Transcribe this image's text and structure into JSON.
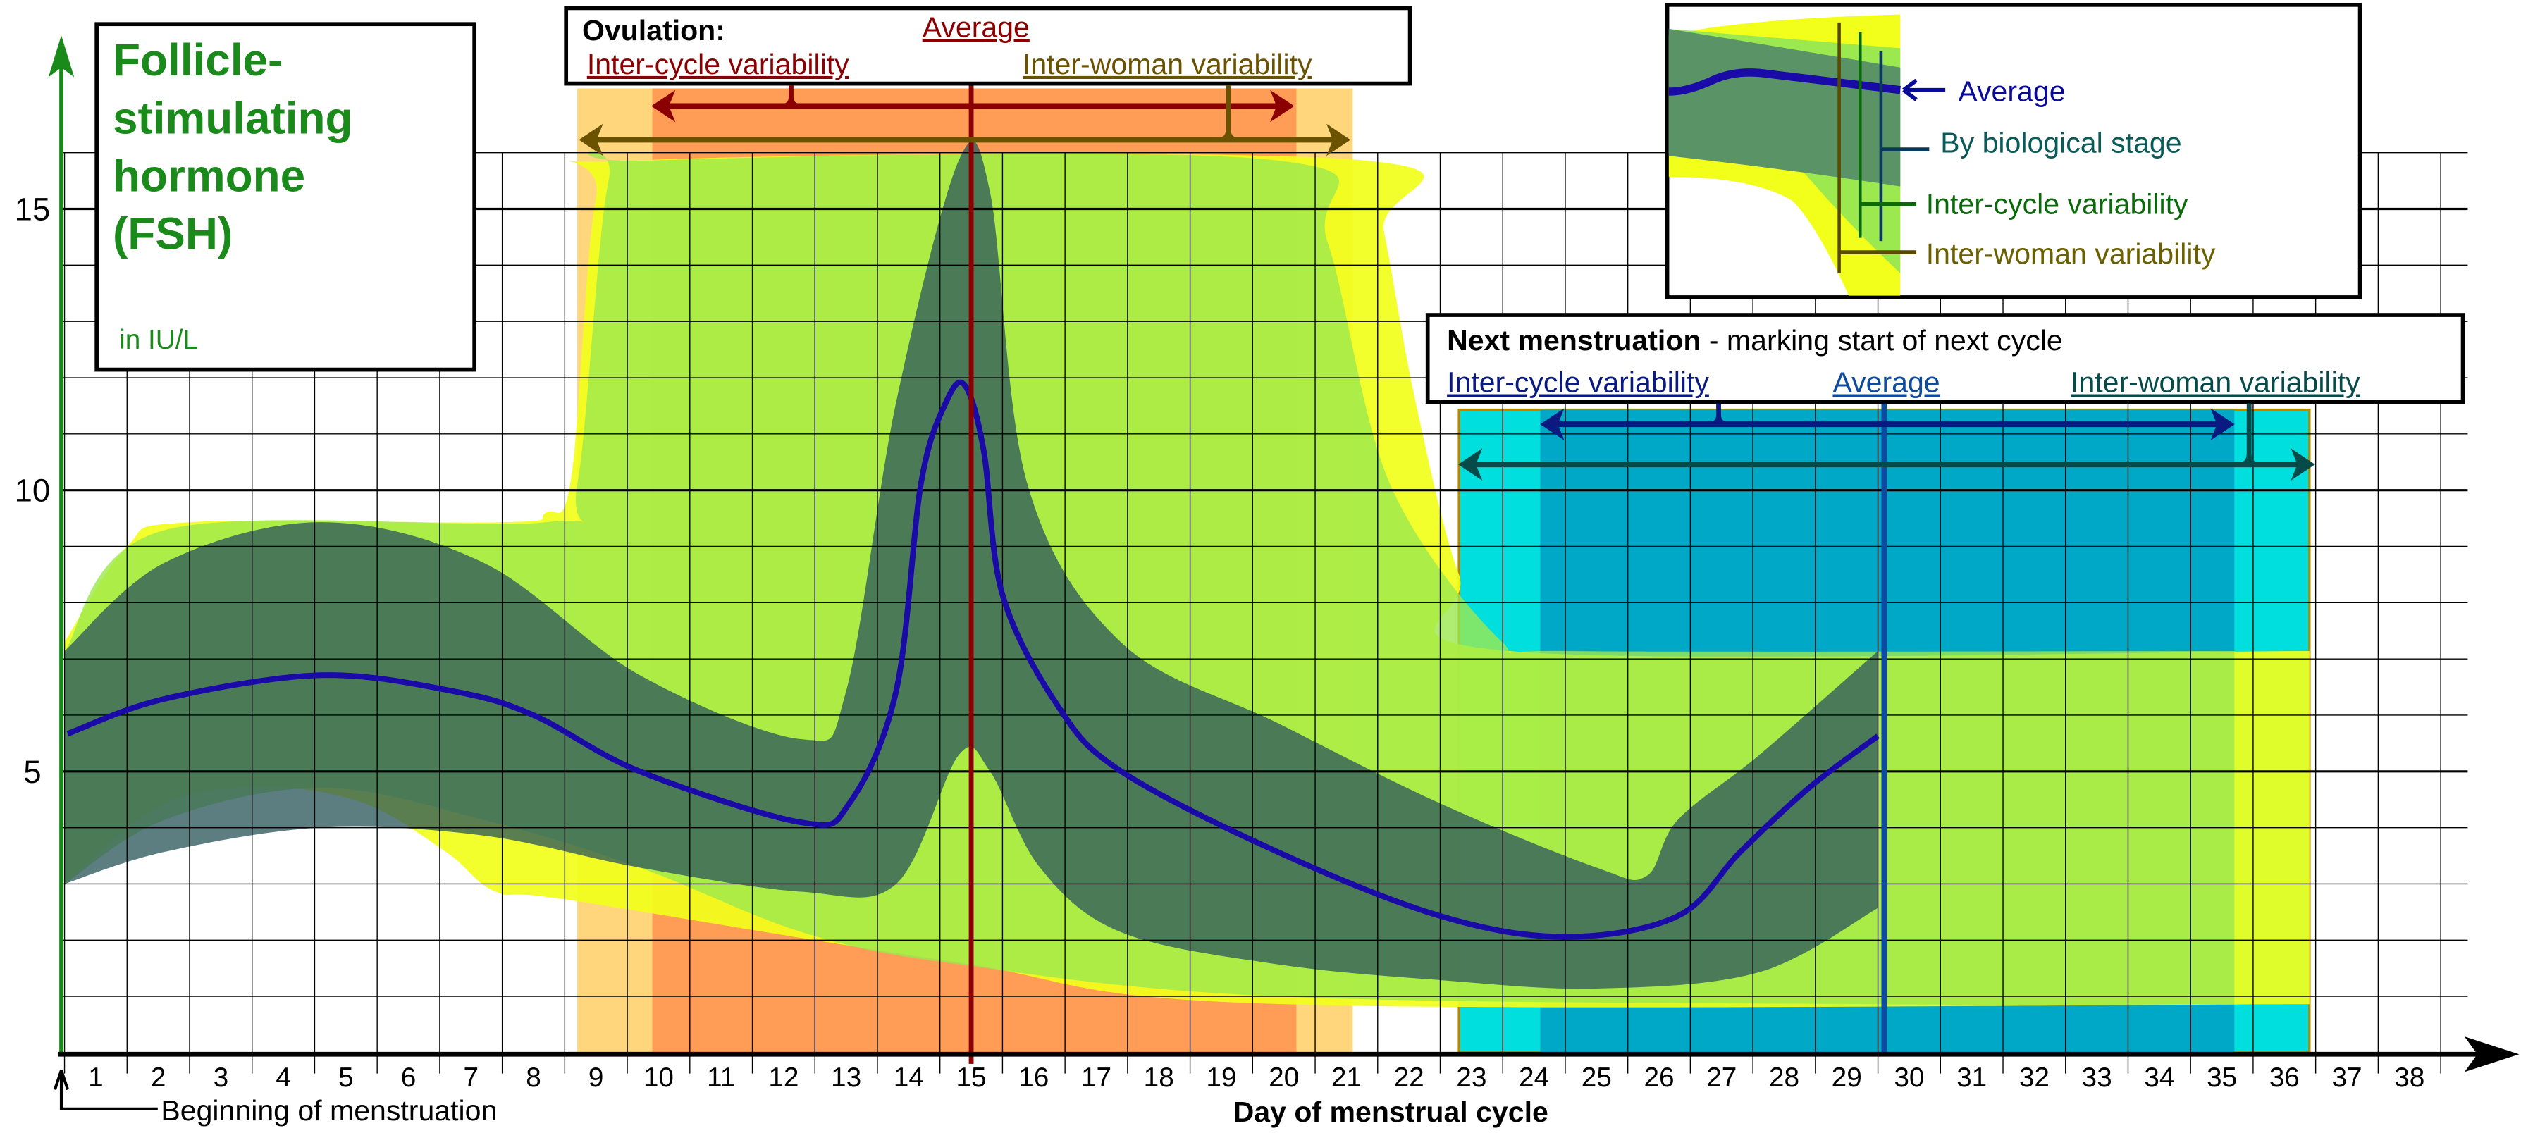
{
  "title_box": {
    "lines": [
      "Follicle-",
      "stimulating",
      "hormone",
      "(FSH)"
    ],
    "unit": "in IU/L",
    "color": "#1a8a1a"
  },
  "ovulation": {
    "heading": "Ovulation:",
    "average_label": "Average",
    "inter_cycle_label": "Inter-cycle variability",
    "inter_woman_label": "Inter-woman variability",
    "average_day": 15,
    "inter_cycle_range": [
      9.9,
      20.2
    ],
    "inter_woman_range": [
      8.7,
      21.1
    ],
    "colors": {
      "average": "#8b0000",
      "inter_cycle": "#ff8a4a",
      "inter_woman": "#ffc850",
      "inter_woman_text": "#6b5200"
    }
  },
  "next_menstruation": {
    "heading": "Next menstruation",
    "subheading": " - marking start of next cycle",
    "inter_cycle_label": "Inter-cycle variability",
    "average_label": "Average",
    "inter_woman_label": "Inter-woman variability",
    "average_day": 29.6,
    "inter_cycle_range": [
      24.1,
      35.2
    ],
    "inter_woman_range": [
      22.8,
      36.4
    ],
    "colors": {
      "average": "#0d4ba0",
      "inter_cycle": "#00a8c8",
      "inter_woman": "#00dede",
      "inter_cycle_text": "#0a1a80",
      "inter_woman_text": "#064a4a"
    }
  },
  "legend": {
    "average": "Average",
    "by_biological_stage": "By biological stage",
    "inter_cycle": "Inter-cycle variability",
    "inter_woman": "Inter-woman variability",
    "colors": {
      "average": "#0a0a9a",
      "by_biological_stage": "#0a5a5a",
      "inter_cycle": "#0a6a0a",
      "inter_woman": "#6b6000"
    }
  },
  "annotations": {
    "beginning": "Beginning of menstruation"
  },
  "chart_data": {
    "type": "area",
    "xlabel": "Day of menstrual cycle",
    "ylabel": "",
    "xlim": [
      0.5,
      38.5
    ],
    "ylim": [
      0,
      16
    ],
    "x_ticks": [
      "1",
      "2",
      "3",
      "4",
      "5",
      "6",
      "7",
      "8",
      "9",
      "10",
      "11",
      "12",
      "13",
      "14",
      "15",
      "16",
      "17",
      "18",
      "19",
      "20",
      "21",
      "22",
      "23",
      "24",
      "25",
      "26",
      "27",
      "28",
      "29",
      "30",
      "31",
      "32",
      "33",
      "34",
      "35",
      "36",
      "37",
      "38"
    ],
    "y_ticks": [
      "5",
      "10",
      "15"
    ],
    "y_tick_values": [
      5,
      10,
      15
    ],
    "grid": true,
    "series": [
      {
        "name": "Inter-woman variability",
        "kind": "band",
        "color": "#f2ff1a",
        "upper": [
          [
            0.5,
            7.3
          ],
          [
            1.5,
            9.0
          ],
          [
            2.5,
            9.43
          ],
          [
            7.5,
            9.43
          ],
          [
            8.2,
            9.6
          ],
          [
            8.6,
            10.2
          ],
          [
            9.0,
            15.2
          ],
          [
            9.6,
            15.86
          ],
          [
            21.3,
            15.86
          ],
          [
            21.6,
            14.6
          ],
          [
            22.1,
            11.6
          ],
          [
            22.8,
            8.5
          ],
          [
            23.6,
            7.14
          ],
          [
            36.4,
            7.14
          ]
        ],
        "lower": [
          [
            0.5,
            3.0
          ],
          [
            2.1,
            4.43
          ],
          [
            3.8,
            4.71
          ],
          [
            5.3,
            4.43
          ],
          [
            6.6,
            3.57
          ],
          [
            7.4,
            2.86
          ],
          [
            8.6,
            2.71
          ],
          [
            14.8,
            1.6
          ],
          [
            20.0,
            0.86
          ],
          [
            36.4,
            0.86
          ]
        ]
      },
      {
        "name": "Inter-cycle variability",
        "kind": "band",
        "color": "#9be84f",
        "upper": [
          [
            0.5,
            7.14
          ],
          [
            2.1,
            9.29
          ],
          [
            8.2,
            9.43
          ],
          [
            8.7,
            10.1
          ],
          [
            9.2,
            15.5
          ],
          [
            9.8,
            15.86
          ],
          [
            19.9,
            15.86
          ],
          [
            20.7,
            14.4
          ],
          [
            21.7,
            10.1
          ],
          [
            23.5,
            7.29
          ],
          [
            24.5,
            7.14
          ],
          [
            35.2,
            7.14
          ]
        ],
        "lower": [
          [
            0.5,
            3.0
          ],
          [
            2.1,
            4.14
          ],
          [
            4.6,
            4.71
          ],
          [
            7.2,
            4.14
          ],
          [
            9.7,
            3.29
          ],
          [
            12.3,
            2.14
          ],
          [
            14.8,
            1.57
          ],
          [
            19.9,
            1.0
          ],
          [
            29.4,
            0.86
          ],
          [
            35.2,
            0.86
          ]
        ]
      },
      {
        "name": "By biological stage",
        "kind": "band",
        "color": "#2f5a5c",
        "upper": [
          [
            0.5,
            7.14
          ],
          [
            2.1,
            8.71
          ],
          [
            4.6,
            9.43
          ],
          [
            7.2,
            8.71
          ],
          [
            9.7,
            6.71
          ],
          [
            12.3,
            5.57
          ],
          [
            13.0,
            6.43
          ],
          [
            13.8,
            11.57
          ],
          [
            14.8,
            15.86
          ],
          [
            15.3,
            15.3
          ],
          [
            15.9,
            10.1
          ],
          [
            17.4,
            7.29
          ],
          [
            19.9,
            5.86
          ],
          [
            22.5,
            4.43
          ],
          [
            25.0,
            3.29
          ],
          [
            25.8,
            3.14
          ],
          [
            26.3,
            4.14
          ],
          [
            27.6,
            5.29
          ],
          [
            29.5,
            7.14
          ]
        ],
        "lower": [
          [
            0.5,
            3.0
          ],
          [
            2.1,
            3.57
          ],
          [
            4.6,
            4.0
          ],
          [
            7.2,
            3.86
          ],
          [
            9.7,
            3.29
          ],
          [
            12.3,
            2.86
          ],
          [
            13.8,
            3.0
          ],
          [
            14.8,
            5.29
          ],
          [
            15.3,
            5.0
          ],
          [
            16.1,
            3.29
          ],
          [
            17.4,
            2.14
          ],
          [
            19.9,
            1.57
          ],
          [
            22.5,
            1.29
          ],
          [
            25.0,
            1.14
          ],
          [
            27.6,
            1.43
          ],
          [
            29.5,
            2.57
          ]
        ]
      },
      {
        "name": "Average",
        "kind": "line",
        "color": "#1a0aa8",
        "points": [
          [
            0.55,
            5.67
          ],
          [
            2.1,
            6.29
          ],
          [
            4.6,
            6.71
          ],
          [
            6.7,
            6.43
          ],
          [
            8.0,
            6.0
          ],
          [
            9.7,
            5.0
          ],
          [
            12.3,
            4.09
          ],
          [
            13.05,
            4.43
          ],
          [
            13.8,
            6.43
          ],
          [
            14.2,
            10.14
          ],
          [
            14.6,
            11.57
          ],
          [
            14.9,
            11.86
          ],
          [
            15.2,
            10.7
          ],
          [
            15.5,
            8.14
          ],
          [
            16.4,
            6.14
          ],
          [
            17.4,
            5.0
          ],
          [
            19.9,
            3.57
          ],
          [
            22.5,
            2.43
          ],
          [
            24.5,
            2.06
          ],
          [
            26.3,
            2.43
          ],
          [
            27.3,
            3.57
          ],
          [
            28.4,
            4.71
          ],
          [
            29.5,
            5.63
          ]
        ]
      }
    ]
  }
}
